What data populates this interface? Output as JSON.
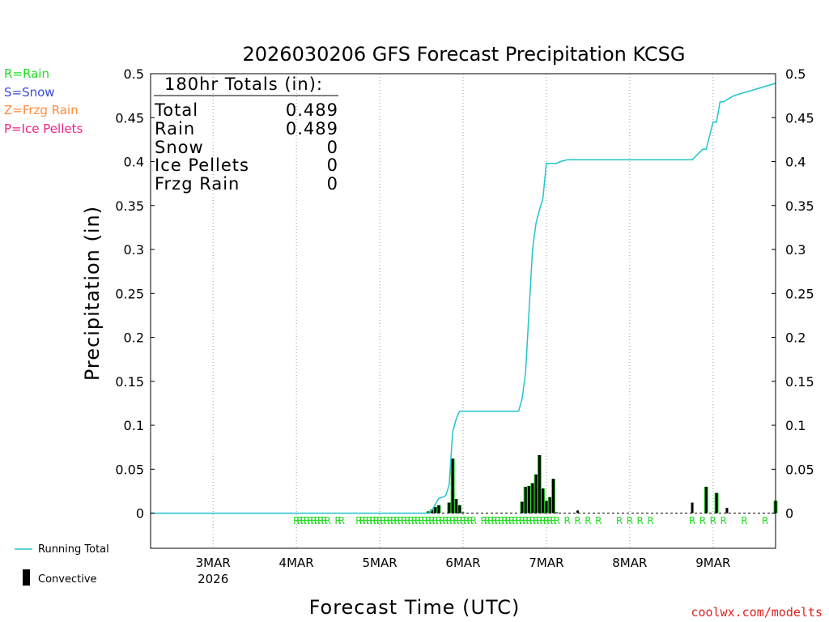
{
  "chart_data": {
    "type": "bar",
    "title": "2026030206 GFS Forecast Precipitation KCSG",
    "ylabel": "Precipitation (in)",
    "xlabel": "Forecast Time (UTC)",
    "ylim": [
      -0.04,
      0.5
    ],
    "yticks": [
      0,
      0.05,
      0.1,
      0.15,
      0.2,
      0.25,
      0.3,
      0.35,
      0.4,
      0.45,
      0.5
    ],
    "x_unit": "forecast hour",
    "xlim": [
      0,
      180
    ],
    "x_ticks": [
      {
        "hour": 18,
        "label": "3MAR",
        "sub": "2026"
      },
      {
        "hour": 42,
        "label": "4MAR",
        "sub": ""
      },
      {
        "hour": 66,
        "label": "5MAR",
        "sub": ""
      },
      {
        "hour": 90,
        "label": "6MAR",
        "sub": ""
      },
      {
        "hour": 114,
        "label": "7MAR",
        "sub": ""
      },
      {
        "hour": 138,
        "label": "8MAR",
        "sub": ""
      },
      {
        "hour": 162,
        "label": "9MAR",
        "sub": ""
      }
    ],
    "precip_type_legend": [
      {
        "label": "R=Rain",
        "color": "#22dd22"
      },
      {
        "label": "S=Snow",
        "color": "#3b4bdd"
      },
      {
        "label": "Z=Frzg Rain",
        "color": "#ff8c3a"
      },
      {
        "label": "P=Ice Pellets",
        "color": "#ee2288"
      }
    ],
    "series": [
      {
        "name": "Running Total",
        "color": "#22c4cc",
        "x": [
          0,
          80,
          81,
          82,
          83,
          84,
          85,
          86,
          87,
          88,
          89,
          90,
          91,
          92,
          93,
          106,
          107,
          108,
          109,
          110,
          111,
          112,
          113,
          114,
          117,
          118,
          120,
          123,
          156,
          159,
          160,
          162,
          163,
          164,
          165,
          168,
          180
        ],
        "y": [
          0,
          0,
          0.003,
          0.01,
          0.017,
          0.018,
          0.02,
          0.032,
          0.092,
          0.107,
          0.116,
          0.116,
          0.116,
          0.116,
          0.116,
          0.116,
          0.13,
          0.16,
          0.23,
          0.3,
          0.33,
          0.345,
          0.358,
          0.398,
          0.398,
          0.4,
          0.402,
          0.402,
          0.402,
          0.414,
          0.414,
          0.445,
          0.445,
          0.468,
          0.468,
          0.475,
          0.489
        ]
      },
      {
        "name": "Convective",
        "color": "#000000",
        "x": [
          80,
          81,
          82,
          83,
          86,
          87,
          88,
          89,
          90,
          107,
          108,
          109,
          110,
          111,
          112,
          113,
          114,
          115,
          116,
          117,
          123,
          156,
          160,
          163,
          166,
          180
        ],
        "y": [
          0.002,
          0.004,
          0.007,
          0.009,
          0.012,
          0.062,
          0.016,
          0.009,
          0.001,
          0.013,
          0.03,
          0.031,
          0.034,
          0.044,
          0.066,
          0.028,
          0.014,
          0.018,
          0.039,
          0.001,
          0.003,
          0.012,
          0.03,
          0.023,
          0.006,
          0.014
        ]
      }
    ],
    "precip_bars": {
      "name": "Rain",
      "color": "#22dd22",
      "x": [
        80,
        81,
        82,
        83,
        86,
        87,
        88,
        89,
        107,
        108,
        109,
        110,
        111,
        112,
        113,
        114,
        115,
        116,
        160,
        163,
        180
      ],
      "y": [
        0.002,
        0.004,
        0.007,
        0.009,
        0.012,
        0.062,
        0.016,
        0.009,
        0.013,
        0.03,
        0.031,
        0.034,
        0.044,
        0.066,
        0.028,
        0.014,
        0.018,
        0.039,
        0.03,
        0.023,
        0.014
      ]
    },
    "ptype_hours": [
      42,
      43,
      44,
      45,
      46,
      47,
      48,
      49,
      50,
      51,
      54,
      55,
      60,
      61,
      62,
      63,
      64,
      65,
      66,
      67,
      68,
      69,
      70,
      71,
      72,
      73,
      74,
      75,
      76,
      77,
      78,
      79,
      80,
      81,
      82,
      83,
      84,
      85,
      86,
      87,
      88,
      89,
      90,
      91,
      92,
      93,
      96,
      97,
      98,
      99,
      100,
      101,
      102,
      103,
      104,
      105,
      106,
      107,
      108,
      109,
      110,
      111,
      112,
      113,
      114,
      115,
      116,
      117,
      120,
      123,
      126,
      129,
      135,
      138,
      141,
      144,
      156,
      159,
      162,
      165,
      171,
      177
    ],
    "ptype_label": "R"
  },
  "totals_box": {
    "header": "180hr Totals (in):",
    "rows": [
      {
        "label": "Total",
        "value": "0.489"
      },
      {
        "label": "Rain",
        "value": "0.489"
      },
      {
        "label": "Snow",
        "value": "0"
      },
      {
        "label": "Ice Pellets",
        "value": "0"
      },
      {
        "label": "Frzg Rain",
        "value": "0"
      }
    ]
  },
  "bottom_legend": {
    "running_total": "Running Total",
    "convective": "Convective"
  },
  "credit": "coolwx.com/modelts",
  "colors": {
    "credit": "#dd2222",
    "running_total": "#22c4cc",
    "rain": "#22dd22",
    "convective": "#000000"
  }
}
